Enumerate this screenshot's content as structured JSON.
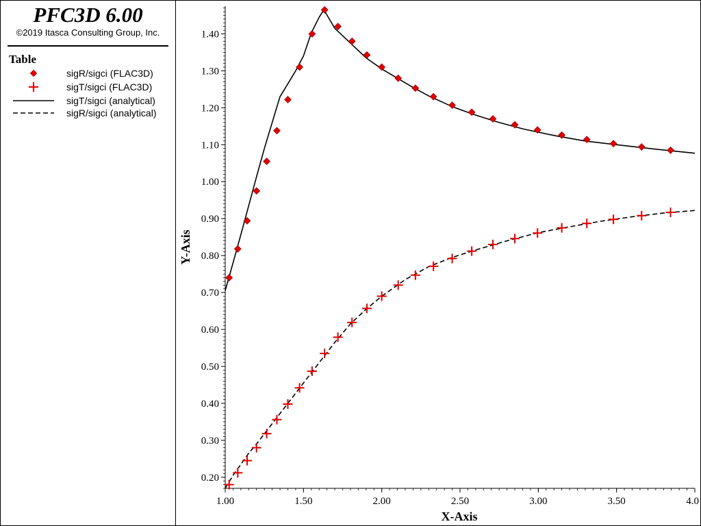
{
  "header": {
    "app_title": "PFC3D 6.00",
    "copyright": "©2019 Itasca Consulting Group, Inc."
  },
  "legend": {
    "title": "Table",
    "items": [
      {
        "label": "sigR/sigci (FLAC3D)",
        "symbol": "diamond",
        "color": "#e00000"
      },
      {
        "label": "sigT/sigci (FLAC3D)",
        "symbol": "plus",
        "color": "#e00000"
      },
      {
        "label": "sigT/sigci (analytical)",
        "symbol": "solid-line",
        "color": "#000000"
      },
      {
        "label": "sigR/sigci (analytical)",
        "symbol": "dashed-line",
        "color": "#000000"
      }
    ]
  },
  "chart_data": {
    "type": "line",
    "xlabel": "X-Axis",
    "ylabel": "Y-Axis",
    "xlim": [
      1.0,
      4.0
    ],
    "ylim": [
      0.17,
      1.475
    ],
    "x_ticks": [
      "1.00",
      "1.50",
      "2.00",
      "2.50",
      "3.00",
      "3.50",
      "4.0"
    ],
    "y_ticks": [
      "0.20",
      "0.30",
      "0.40",
      "0.50",
      "0.60",
      "0.70",
      "0.80",
      "0.90",
      "1.00",
      "1.10",
      "1.20",
      "1.30",
      "1.40"
    ],
    "series": [
      {
        "name": "sigT/sigci (analytical)",
        "style": "solid",
        "color": "#000000",
        "x": [
          1.0,
          1.05,
          1.1,
          1.15,
          1.2,
          1.25,
          1.3,
          1.35,
          1.4,
          1.45,
          1.5,
          1.55,
          1.6,
          1.63,
          1.7,
          1.8,
          1.9,
          2.0,
          2.1,
          2.2,
          2.3,
          2.45,
          2.6,
          2.75,
          2.9,
          3.1,
          3.3,
          3.5,
          3.75,
          4.0
        ],
        "y": [
          0.705,
          0.78,
          0.857,
          0.935,
          1.013,
          1.09,
          1.16,
          1.23,
          1.265,
          1.3,
          1.34,
          1.403,
          1.445,
          1.465,
          1.415,
          1.375,
          1.335,
          1.305,
          1.28,
          1.255,
          1.232,
          1.203,
          1.18,
          1.16,
          1.143,
          1.125,
          1.11,
          1.1,
          1.088,
          1.077
        ]
      },
      {
        "name": "sigR/sigci (analytical)",
        "style": "dashed",
        "color": "#000000",
        "x": [
          1.0,
          1.05,
          1.1,
          1.15,
          1.2,
          1.3,
          1.4,
          1.5,
          1.6,
          1.7,
          1.8,
          1.9,
          2.0,
          2.15,
          2.3,
          2.45,
          2.6,
          2.8,
          3.0,
          3.2,
          3.4,
          3.6,
          3.8,
          4.0
        ],
        "y": [
          0.17,
          0.205,
          0.235,
          0.265,
          0.29,
          0.345,
          0.4,
          0.455,
          0.51,
          0.565,
          0.615,
          0.655,
          0.69,
          0.735,
          0.77,
          0.795,
          0.815,
          0.84,
          0.862,
          0.878,
          0.893,
          0.905,
          0.915,
          0.922
        ]
      },
      {
        "name": "sigR/sigci (FLAC3D)",
        "marker": "diamond",
        "color": "#e00000",
        "x": [
          1.025,
          1.08,
          1.14,
          1.2,
          1.265,
          1.33,
          1.4,
          1.475,
          1.555,
          1.635,
          1.72,
          1.81,
          1.905,
          2.0,
          2.105,
          2.215,
          2.33,
          2.45,
          2.575,
          2.71,
          2.85,
          2.995,
          3.15,
          3.31,
          3.48,
          3.66,
          3.845
        ],
        "y": [
          0.74,
          0.818,
          0.894,
          0.975,
          1.055,
          1.138,
          1.222,
          1.31,
          1.4,
          1.465,
          1.42,
          1.38,
          1.343,
          1.31,
          1.28,
          1.253,
          1.23,
          1.207,
          1.188,
          1.17,
          1.154,
          1.14,
          1.126,
          1.114,
          1.103,
          1.094,
          1.085
        ]
      },
      {
        "name": "sigT/sigci (FLAC3D)",
        "marker": "plus",
        "color": "#e00000",
        "x": [
          1.025,
          1.08,
          1.14,
          1.2,
          1.265,
          1.33,
          1.4,
          1.475,
          1.555,
          1.635,
          1.72,
          1.81,
          1.905,
          2.0,
          2.105,
          2.215,
          2.33,
          2.45,
          2.575,
          2.71,
          2.85,
          2.995,
          3.15,
          3.31,
          3.48,
          3.66,
          3.845
        ],
        "y": [
          0.18,
          0.212,
          0.245,
          0.28,
          0.318,
          0.356,
          0.398,
          0.442,
          0.487,
          0.535,
          0.579,
          0.619,
          0.657,
          0.69,
          0.72,
          0.747,
          0.771,
          0.792,
          0.812,
          0.83,
          0.846,
          0.861,
          0.875,
          0.887,
          0.898,
          0.908,
          0.917
        ]
      }
    ]
  }
}
